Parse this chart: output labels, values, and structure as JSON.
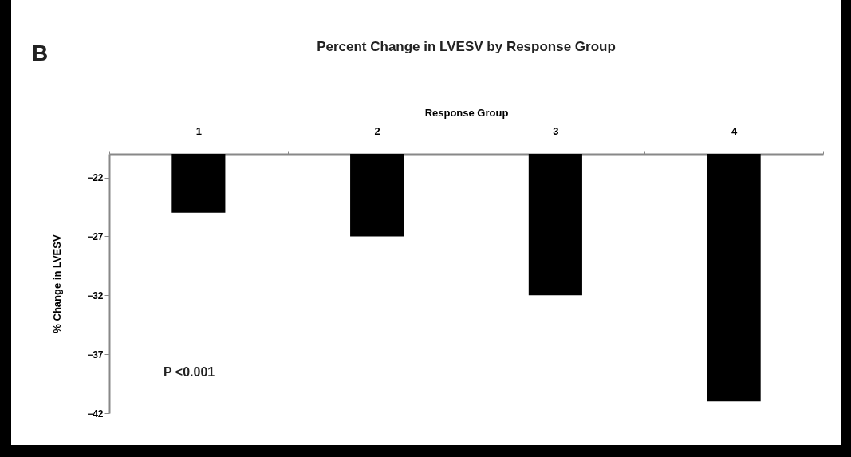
{
  "chart_data": {
    "type": "bar",
    "title": "Percent Change in LVESV by Response Group",
    "xlabel": "Response Group",
    "ylabel": "% Change in LVESV",
    "categories": [
      "1",
      "2",
      "3",
      "4"
    ],
    "values": [
      -25,
      -27,
      -32,
      -41
    ],
    "color": "#000000",
    "ylim": [
      -42,
      -20
    ],
    "yticks": [
      -22,
      -27,
      -32,
      -37,
      -42
    ],
    "annotations": [
      "B",
      "P <0.001"
    ]
  }
}
